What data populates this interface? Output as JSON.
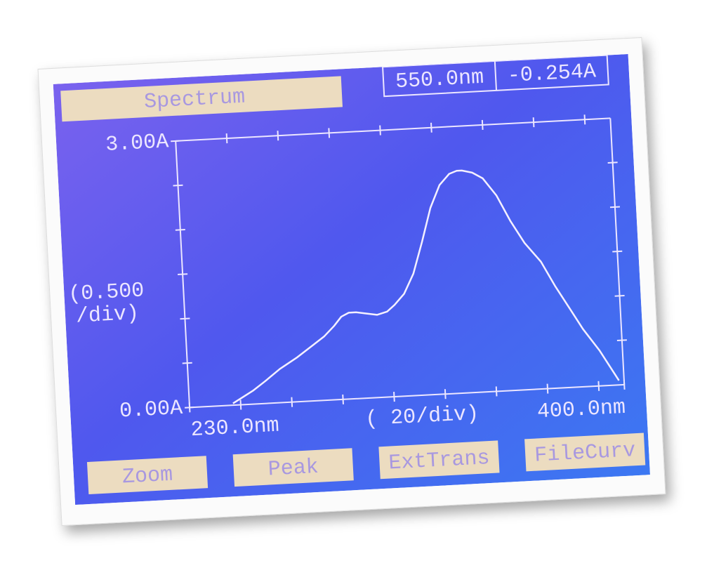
{
  "chart_data": {
    "type": "line",
    "title": "Spectrum",
    "readout_wavelength": "550.0nm",
    "readout_absorbance": "-0.254A",
    "y_division": [
      "(0.500",
      "/div)"
    ],
    "x_division": "( 20/div)",
    "buttons": [
      "Zoom",
      "Peak",
      "ExtTrans",
      "FileCurv"
    ],
    "x": [
      247,
      255,
      260,
      266,
      273,
      279,
      284,
      288,
      291,
      294,
      297,
      301,
      305,
      309,
      312,
      316,
      320,
      324,
      328,
      332,
      336,
      339,
      341,
      345,
      349,
      354,
      359,
      364,
      370,
      375,
      380,
      385,
      391,
      395,
      398
    ],
    "values": [
      0.02,
      0.15,
      0.25,
      0.38,
      0.5,
      0.62,
      0.72,
      0.83,
      0.93,
      0.97,
      0.97,
      0.95,
      0.93,
      0.96,
      1.03,
      1.15,
      1.37,
      1.72,
      2.1,
      2.35,
      2.47,
      2.5,
      2.5,
      2.47,
      2.4,
      2.2,
      1.9,
      1.65,
      1.43,
      1.15,
      0.9,
      0.65,
      0.4,
      0.2,
      0.05
    ],
    "color": "#f4f0ff",
    "xlim": [
      230,
      400
    ],
    "ylim": [
      0,
      3
    ],
    "xticks": [
      {
        "value": 230,
        "label": "230.0nm"
      },
      {
        "value": 400,
        "label": "400.0nm"
      }
    ],
    "yticks": [
      {
        "value": 0,
        "label": "0.00A"
      },
      {
        "value": 3,
        "label": "3.00A"
      }
    ],
    "x_minor_ticks": [
      250,
      270,
      290,
      310,
      330,
      350,
      370,
      390
    ],
    "y_minor_ticks": [
      0.5,
      1,
      1.5,
      2,
      2.5
    ]
  }
}
